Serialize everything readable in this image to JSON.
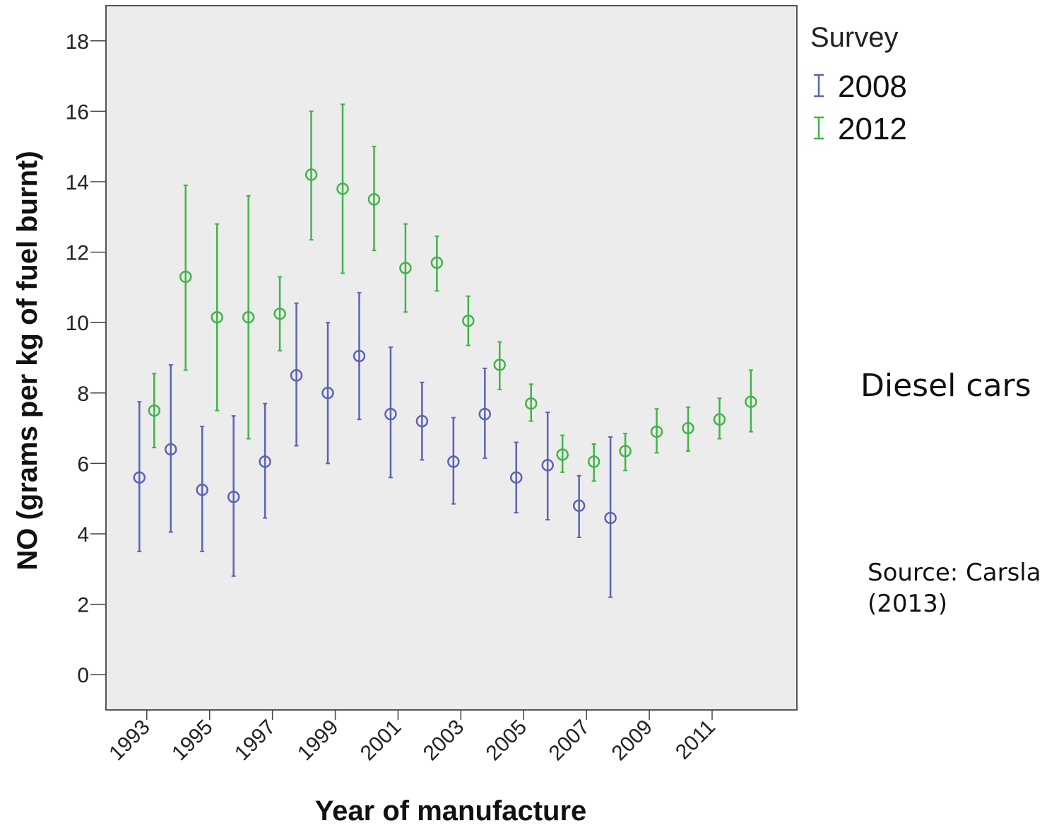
{
  "side_text": {
    "title": "Diesel cars",
    "source_line1": "Source: Carsla",
    "source_line2": "(2013)"
  },
  "colors": {
    "series_2008": "#5a63b8",
    "series_2012": "#3fb547",
    "plot_background": "#ececec",
    "frame": "#555555"
  },
  "chart_data": {
    "type": "scatter",
    "subtype": "error-bar",
    "title": "",
    "xlabel": "Year of manufacture",
    "ylabel": "NO (grams per kg of fuel burnt)",
    "ylim": [
      -1,
      19
    ],
    "yticks": [
      0,
      2,
      4,
      6,
      8,
      10,
      12,
      14,
      16,
      18
    ],
    "x_range": [
      1991.7,
      2013.7
    ],
    "xticks": [
      1993,
      1995,
      1997,
      1999,
      2001,
      2003,
      2005,
      2007,
      2009,
      2011
    ],
    "grid": false,
    "legend": {
      "title": "Survey",
      "position": "right"
    },
    "series": [
      {
        "name": "2008",
        "color": "#5a63b8",
        "points": [
          {
            "x": 1993,
            "y": 5.6,
            "low": 3.5,
            "high": 7.75
          },
          {
            "x": 1994,
            "y": 6.4,
            "low": 4.05,
            "high": 8.8
          },
          {
            "x": 1995,
            "y": 5.25,
            "low": 3.5,
            "high": 7.05
          },
          {
            "x": 1996,
            "y": 5.05,
            "low": 2.8,
            "high": 7.35
          },
          {
            "x": 1997,
            "y": 6.05,
            "low": 4.45,
            "high": 7.7
          },
          {
            "x": 1998,
            "y": 8.5,
            "low": 6.5,
            "high": 10.55
          },
          {
            "x": 1999,
            "y": 8.0,
            "low": 6.0,
            "high": 10.0
          },
          {
            "x": 2000,
            "y": 9.05,
            "low": 7.25,
            "high": 10.85
          },
          {
            "x": 2001,
            "y": 7.4,
            "low": 5.6,
            "high": 9.3
          },
          {
            "x": 2002,
            "y": 7.2,
            "low": 6.1,
            "high": 8.3
          },
          {
            "x": 2003,
            "y": 6.05,
            "low": 4.85,
            "high": 7.3
          },
          {
            "x": 2004,
            "y": 7.4,
            "low": 6.15,
            "high": 8.7
          },
          {
            "x": 2005,
            "y": 5.6,
            "low": 4.6,
            "high": 6.6
          },
          {
            "x": 2006,
            "y": 5.95,
            "low": 4.4,
            "high": 7.45
          },
          {
            "x": 2007,
            "y": 4.8,
            "low": 3.9,
            "high": 5.65
          },
          {
            "x": 2008,
            "y": 4.45,
            "low": 2.2,
            "high": 6.75
          }
        ]
      },
      {
        "name": "2012",
        "color": "#3fb547",
        "points": [
          {
            "x": 1993,
            "y": 7.5,
            "low": 6.45,
            "high": 8.55
          },
          {
            "x": 1994,
            "y": 11.3,
            "low": 8.65,
            "high": 13.9
          },
          {
            "x": 1995,
            "y": 10.15,
            "low": 7.5,
            "high": 12.8
          },
          {
            "x": 1996,
            "y": 10.15,
            "low": 6.7,
            "high": 13.6
          },
          {
            "x": 1997,
            "y": 10.25,
            "low": 9.2,
            "high": 11.3
          },
          {
            "x": 1998,
            "y": 14.2,
            "low": 12.35,
            "high": 16.0
          },
          {
            "x": 1999,
            "y": 13.8,
            "low": 11.4,
            "high": 16.2
          },
          {
            "x": 2000,
            "y": 13.5,
            "low": 12.05,
            "high": 15.0
          },
          {
            "x": 2001,
            "y": 11.55,
            "low": 10.3,
            "high": 12.8
          },
          {
            "x": 2002,
            "y": 11.7,
            "low": 10.9,
            "high": 12.45
          },
          {
            "x": 2003,
            "y": 10.05,
            "low": 9.35,
            "high": 10.75
          },
          {
            "x": 2004,
            "y": 8.8,
            "low": 8.1,
            "high": 9.45
          },
          {
            "x": 2005,
            "y": 7.7,
            "low": 7.2,
            "high": 8.25
          },
          {
            "x": 2006,
            "y": 6.25,
            "low": 5.75,
            "high": 6.8
          },
          {
            "x": 2007,
            "y": 6.05,
            "low": 5.5,
            "high": 6.55
          },
          {
            "x": 2008,
            "y": 6.35,
            "low": 5.8,
            "high": 6.85
          },
          {
            "x": 2009,
            "y": 6.9,
            "low": 6.3,
            "high": 7.55
          },
          {
            "x": 2010,
            "y": 7.0,
            "low": 6.35,
            "high": 7.6
          },
          {
            "x": 2011,
            "y": 7.25,
            "low": 6.7,
            "high": 7.85
          },
          {
            "x": 2012,
            "y": 7.75,
            "low": 6.9,
            "high": 8.65
          }
        ]
      }
    ]
  }
}
